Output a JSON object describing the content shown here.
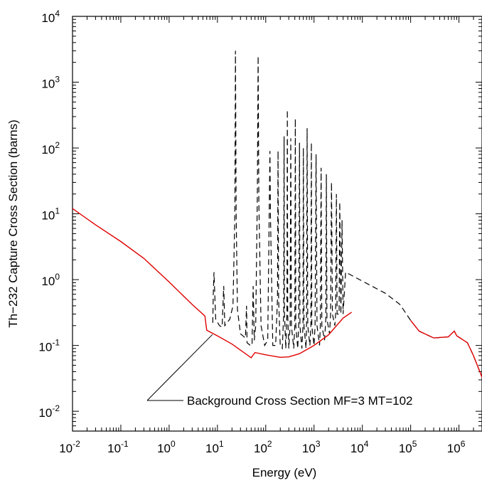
{
  "chart_data": {
    "type": "line",
    "title": "",
    "xlabel": "Energy (eV)",
    "ylabel": "Th−232 Capture Cross Section (barns)",
    "xscale": "log",
    "yscale": "log",
    "xlim": [
      0.01,
      3000000
    ],
    "ylim": [
      0.005,
      10000
    ],
    "grid": false,
    "x_ticks": [
      {
        "base": "10",
        "exp": "-2",
        "value": 0.01
      },
      {
        "base": "10",
        "exp": "-1",
        "value": 0.1
      },
      {
        "base": "10",
        "exp": "0",
        "value": 1
      },
      {
        "base": "10",
        "exp": "1",
        "value": 10
      },
      {
        "base": "10",
        "exp": "2",
        "value": 100
      },
      {
        "base": "10",
        "exp": "3",
        "value": 1000
      },
      {
        "base": "10",
        "exp": "4",
        "value": 10000
      },
      {
        "base": "10",
        "exp": "5",
        "value": 100000
      },
      {
        "base": "10",
        "exp": "6",
        "value": 1000000
      }
    ],
    "y_ticks": [
      {
        "base": "10",
        "exp": "-2",
        "value": 0.01
      },
      {
        "base": "10",
        "exp": "-1",
        "value": 0.1
      },
      {
        "base": "10",
        "exp": "0",
        "value": 1
      },
      {
        "base": "10",
        "exp": "1",
        "value": 10
      },
      {
        "base": "10",
        "exp": "2",
        "value": 100
      },
      {
        "base": "10",
        "exp": "3",
        "value": 1000
      },
      {
        "base": "10",
        "exp": "4",
        "value": 10000
      }
    ],
    "series": [
      {
        "name": "",
        "style": "dashed",
        "color": "#000000",
        "points": [
          [
            8,
            0.22
          ],
          [
            8.2,
            0.6
          ],
          [
            8.5,
            1.3
          ],
          [
            8.8,
            0.6
          ],
          [
            9.2,
            0.25
          ],
          [
            11,
            0.2
          ],
          [
            12.5,
            0.19
          ],
          [
            13.5,
            0.8
          ],
          [
            14.2,
            0.2
          ],
          [
            18,
            0.25
          ],
          [
            21,
            0.4
          ],
          [
            23,
            10
          ],
          [
            23.6,
            3000
          ],
          [
            24.4,
            10
          ],
          [
            26,
            0.35
          ],
          [
            30,
            0.15
          ],
          [
            38,
            0.13
          ],
          [
            40,
            0.4
          ],
          [
            41,
            0.11
          ],
          [
            48,
            0.1
          ],
          [
            52,
            0.1
          ],
          [
            55,
            0.8
          ],
          [
            58,
            0.12
          ],
          [
            62,
            0.2
          ],
          [
            67,
            20
          ],
          [
            69.5,
            2500
          ],
          [
            72,
            15
          ],
          [
            80,
            0.2
          ],
          [
            95,
            0.1
          ],
          [
            110,
            0.12
          ],
          [
            120,
            30
          ],
          [
            122,
            90
          ],
          [
            125,
            10
          ],
          [
            140,
            0.1
          ],
          [
            160,
            0.1
          ],
          [
            175,
            0.5
          ],
          [
            180,
            90
          ],
          [
            185,
            0.5
          ],
          [
            200,
            0.1
          ],
          [
            220,
            0.09
          ],
          [
            235,
            0.3
          ],
          [
            240,
            150
          ],
          [
            245,
            0.3
          ],
          [
            260,
            0.09
          ],
          [
            275,
            0.3
          ],
          [
            280,
            380
          ],
          [
            285,
            0.3
          ],
          [
            300,
            0.09
          ],
          [
            320,
            0.2
          ],
          [
            330,
            140
          ],
          [
            340,
            0.2
          ],
          [
            380,
            0.09
          ],
          [
            400,
            0.2
          ],
          [
            410,
            280
          ],
          [
            420,
            0.2
          ],
          [
            460,
            0.09
          ],
          [
            480,
            0.2
          ],
          [
            500,
            120
          ],
          [
            510,
            0.2
          ],
          [
            560,
            0.09
          ],
          [
            590,
            0.2
          ],
          [
            600,
            100
          ],
          [
            620,
            0.2
          ],
          [
            680,
            0.09
          ],
          [
            700,
            0.2
          ],
          [
            720,
            200
          ],
          [
            740,
            0.2
          ],
          [
            820,
            0.1
          ],
          [
            860,
            0.2
          ],
          [
            880,
            120
          ],
          [
            900,
            0.2
          ],
          [
            1000,
            0.1
          ],
          [
            1050,
            0.2
          ],
          [
            1100,
            80
          ],
          [
            1150,
            0.2
          ],
          [
            1300,
            0.1
          ],
          [
            1350,
            0.2
          ],
          [
            1400,
            50
          ],
          [
            1450,
            0.2
          ],
          [
            1650,
            0.12
          ],
          [
            1750,
            0.25
          ],
          [
            1800,
            40
          ],
          [
            1850,
            0.25
          ],
          [
            2100,
            0.15
          ],
          [
            2200,
            0.3
          ],
          [
            2300,
            30
          ],
          [
            2400,
            0.3
          ],
          [
            2700,
            0.2
          ],
          [
            2800,
            0.3
          ],
          [
            2900,
            20
          ],
          [
            3000,
            0.3
          ],
          [
            3300,
            0.3
          ],
          [
            3400,
            15
          ],
          [
            3600,
            0.3
          ],
          [
            3800,
            8
          ],
          [
            4000,
            0.3
          ],
          [
            4500,
            1.3
          ],
          [
            10000,
            0.95
          ],
          [
            30000,
            0.62
          ],
          [
            60000,
            0.42
          ],
          [
            100000,
            0.24
          ],
          [
            150000,
            0.165
          ],
          [
            300000,
            0.13
          ],
          [
            600000,
            0.135
          ],
          [
            800000,
            0.165
          ],
          [
            900000,
            0.14
          ],
          [
            1500000,
            0.11
          ],
          [
            2000000,
            0.07
          ],
          [
            3000000,
            0.033
          ]
        ]
      },
      {
        "name": "",
        "style": "solid",
        "color": "#e00000",
        "points": [
          [
            0.01,
            12
          ],
          [
            0.03,
            6.8
          ],
          [
            0.1,
            3.8
          ],
          [
            0.3,
            2.1
          ],
          [
            1,
            0.92
          ],
          [
            3,
            0.42
          ],
          [
            5.5,
            0.28
          ],
          [
            6,
            0.17
          ],
          [
            10,
            0.14
          ],
          [
            20,
            0.105
          ],
          [
            50,
            0.065
          ],
          [
            60,
            0.078
          ],
          [
            100,
            0.072
          ],
          [
            200,
            0.066
          ],
          [
            300,
            0.067
          ],
          [
            500,
            0.075
          ],
          [
            1000,
            0.1
          ],
          [
            2000,
            0.145
          ],
          [
            4000,
            0.26
          ],
          [
            6000,
            0.32
          ]
        ]
      },
      {
        "name": "",
        "style": "solid",
        "color": "#e00000",
        "points": [
          [
            100000,
            0.24
          ],
          [
            150000,
            0.165
          ],
          [
            300000,
            0.13
          ],
          [
            600000,
            0.135
          ],
          [
            800000,
            0.165
          ],
          [
            900000,
            0.14
          ],
          [
            1500000,
            0.11
          ],
          [
            2000000,
            0.07
          ],
          [
            3000000,
            0.033
          ]
        ]
      }
    ],
    "annotation": {
      "text": "Background Cross Section MF=3 MT=102",
      "target_x": 6,
      "target_y": 0.17
    }
  }
}
